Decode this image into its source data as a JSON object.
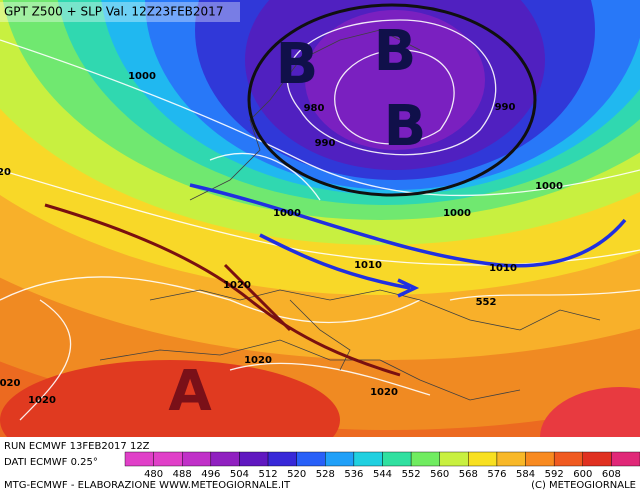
{
  "header": {
    "title": "GPT Z500 + SLP Val. 12Z23FEB2017"
  },
  "isobar_labels": [
    "1000",
    "980",
    "990",
    "990",
    "1000",
    "1000",
    "1000",
    "1010",
    "1010",
    "552",
    "1020",
    "1020",
    "1020",
    "1020",
    "020",
    "20"
  ],
  "pressure_centers": [
    "B",
    "B",
    "B",
    "A"
  ],
  "footer": {
    "run": "RUN ECMWF 13FEB2017 12Z",
    "data": "DATI ECMWF 0.25°",
    "credit": "MTG-ECMWF - ELABORAZIONE WWW.METEOGIORNALE.IT",
    "copyright": "(C) METEOGIORNALE"
  },
  "colorbar": {
    "ticks": [
      480,
      488,
      496,
      504,
      512,
      520,
      528,
      536,
      544,
      552,
      560,
      568,
      576,
      584,
      592,
      600,
      608
    ],
    "colors": [
      "#e040c8",
      "#c030c8",
      "#9020c0",
      "#6018c0",
      "#3828d8",
      "#2860f8",
      "#20a0f8",
      "#20d0e0",
      "#30e0a0",
      "#70ec60",
      "#c8f040",
      "#f8e020",
      "#f8b828",
      "#f88a20",
      "#f05a20",
      "#e03020",
      "#e02878"
    ]
  }
}
